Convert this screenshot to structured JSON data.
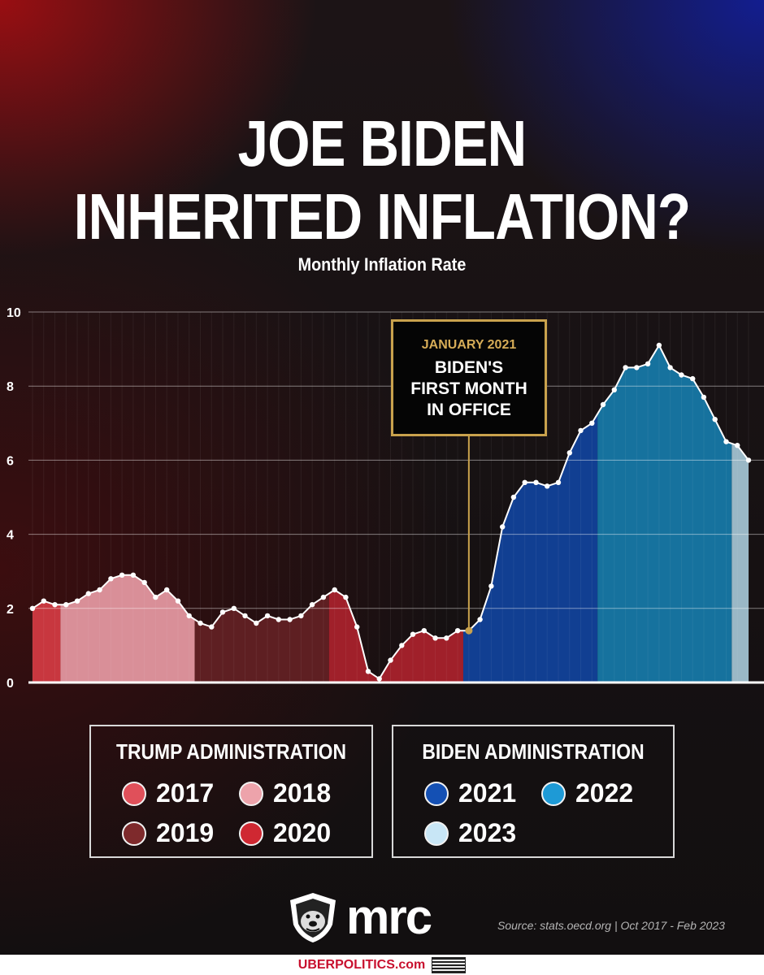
{
  "title_line1": "JOE BIDEN",
  "title_line2": "INHERITED INFLATION?",
  "subtitle": "Monthly Inflation Rate",
  "callout": {
    "date": "JANUARY 2021",
    "text": "BIDEN'S\nFIRST MONTH\nIN OFFICE"
  },
  "legend": {
    "trump": {
      "title": "TRUMP ADMINISTRATION",
      "items": [
        {
          "label": "2017",
          "color": "#e0505a"
        },
        {
          "label": "2018",
          "color": "#eda3ab"
        },
        {
          "label": "2019",
          "color": "#7e2a2c"
        },
        {
          "label": "2020",
          "color": "#cf2832"
        }
      ]
    },
    "biden": {
      "title": "BIDEN ADMINISTRATION",
      "items": [
        {
          "label": "2021",
          "color": "#1450b4"
        },
        {
          "label": "2022",
          "color": "#1e9ad6"
        },
        {
          "label": "2023",
          "color": "#c8e6f6"
        }
      ]
    }
  },
  "logo_text": "mrc",
  "source": "Source: stats.oecd.org  |  Oct 2017 - Feb 2023",
  "footer_text": "UBERPOLITICS.com",
  "chart_data": {
    "type": "area",
    "title": "Monthly Inflation Rate",
    "xlabel": "",
    "ylabel": "",
    "ylim": [
      0,
      10
    ],
    "yticks": [
      "0",
      "2",
      "4",
      "6",
      "8",
      "10"
    ],
    "grid": true,
    "x": [
      "2017-10",
      "2017-11",
      "2017-12",
      "2018-01",
      "2018-02",
      "2018-03",
      "2018-04",
      "2018-05",
      "2018-06",
      "2018-07",
      "2018-08",
      "2018-09",
      "2018-10",
      "2018-11",
      "2018-12",
      "2019-01",
      "2019-02",
      "2019-03",
      "2019-04",
      "2019-05",
      "2019-06",
      "2019-07",
      "2019-08",
      "2019-09",
      "2019-10",
      "2019-11",
      "2019-12",
      "2020-01",
      "2020-02",
      "2020-03",
      "2020-04",
      "2020-05",
      "2020-06",
      "2020-07",
      "2020-08",
      "2020-09",
      "2020-10",
      "2020-11",
      "2020-12",
      "2021-01",
      "2021-02",
      "2021-03",
      "2021-04",
      "2021-05",
      "2021-06",
      "2021-07",
      "2021-08",
      "2021-09",
      "2021-10",
      "2021-11",
      "2021-12",
      "2022-01",
      "2022-02",
      "2022-03",
      "2022-04",
      "2022-05",
      "2022-06",
      "2022-07",
      "2022-08",
      "2022-09",
      "2022-10",
      "2022-11",
      "2022-12",
      "2023-01",
      "2023-02"
    ],
    "values": [
      2.0,
      2.2,
      2.1,
      2.1,
      2.2,
      2.4,
      2.5,
      2.8,
      2.9,
      2.9,
      2.7,
      2.3,
      2.5,
      2.2,
      1.8,
      1.6,
      1.5,
      1.9,
      2.0,
      1.8,
      1.6,
      1.8,
      1.7,
      1.7,
      1.8,
      2.1,
      2.3,
      2.5,
      2.3,
      1.5,
      0.3,
      0.1,
      0.6,
      1.0,
      1.3,
      1.4,
      1.2,
      1.2,
      1.4,
      1.4,
      1.7,
      2.6,
      4.2,
      5.0,
      5.4,
      5.4,
      5.3,
      5.4,
      6.2,
      6.8,
      7.0,
      7.5,
      7.9,
      8.5,
      8.5,
      8.6,
      9.1,
      8.5,
      8.3,
      8.2,
      7.7,
      7.1,
      6.5,
      6.4,
      6.0
    ],
    "year_bands": [
      {
        "year": "2017",
        "color": "#c8373f"
      },
      {
        "year": "2018",
        "color": "#d98f98"
      },
      {
        "year": "2019",
        "color": "#5e1f22"
      },
      {
        "year": "2020",
        "color": "#a0202a"
      },
      {
        "year": "2021",
        "color": "#113f92"
      },
      {
        "year": "2022",
        "color": "#16729e"
      },
      {
        "year": "2023",
        "color": "#9ab8c6"
      }
    ],
    "highlight": {
      "x": "2021-01",
      "label": "JANUARY 2021"
    }
  }
}
